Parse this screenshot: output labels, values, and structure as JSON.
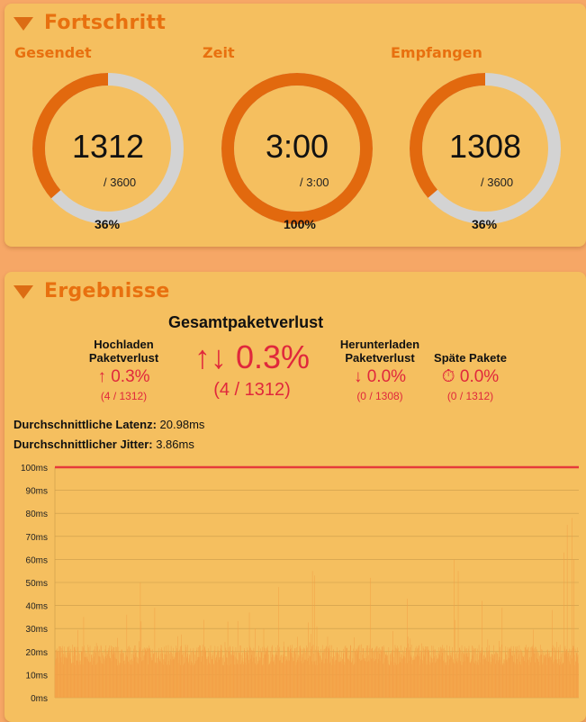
{
  "progress": {
    "title": "Fortschritt",
    "gauges": [
      {
        "label": "Gesendet",
        "value": "1312",
        "total": "/ 3600",
        "percent_text": "36%",
        "fraction": 0.3644
      },
      {
        "label": "Zeit",
        "value": "3:00",
        "total": "/ 3:00",
        "percent_text": "100%",
        "fraction": 1.0
      },
      {
        "label": "Empfangen",
        "value": "1308",
        "total": "/ 3600",
        "percent_text": "36%",
        "fraction": 0.3633
      }
    ]
  },
  "results": {
    "title": "Ergebnisse",
    "total_loss": {
      "heading": "Gesamtpaketverlust",
      "symbol": "↑↓",
      "value": "0.3%",
      "count": "(4 / 1312)"
    },
    "upload_loss": {
      "label_line1": "Hochladen",
      "label_line2": "Paketverlust",
      "symbol": "↑",
      "value": "0.3%",
      "count": "(4 / 1312)"
    },
    "download_loss": {
      "label_line1": "Herunterladen",
      "label_line2": "Paketverlust",
      "symbol": "↓",
      "value": "0.0%",
      "count": "(0 / 1308)"
    },
    "late_packets": {
      "label": "Späte Pakete",
      "symbol": "⏱",
      "value": "0.0%",
      "count": "(0 / 1312)"
    },
    "avg_latency": {
      "label": "Durchschnittliche Latenz:",
      "value": "20.98ms"
    },
    "avg_jitter": {
      "label": "Durchschnittlicher Jitter:",
      "value": "3.86ms"
    }
  },
  "colors": {
    "accent": "#e8700f",
    "gauge_fill": "#e2690e",
    "gauge_track": "#d3d3d3",
    "loss_red": "#e0283c",
    "threshold_line": "#e63a3a",
    "bars": "#f3a047",
    "panel_bg": "#f5bf5f",
    "page_bg": "#f6a766"
  },
  "icons": {
    "collapse": "triangle-down-icon",
    "late": "stopwatch-icon"
  },
  "chart_data": {
    "type": "bar",
    "y_tick_labels": [
      "0ms",
      "10ms",
      "20ms",
      "30ms",
      "40ms",
      "50ms",
      "60ms",
      "70ms",
      "80ms",
      "90ms",
      "100ms"
    ],
    "ylim": [
      0,
      100
    ],
    "unit": "ms",
    "grid": true,
    "threshold": 100,
    "packet_count": 1312,
    "spikes": [
      {
        "packet": 72,
        "latency_ms": 35
      },
      {
        "packet": 180,
        "latency_ms": 36
      },
      {
        "packet": 214,
        "latency_ms": 50
      },
      {
        "packet": 250,
        "latency_ms": 39
      },
      {
        "packet": 433,
        "latency_ms": 33
      },
      {
        "packet": 487,
        "latency_ms": 37
      },
      {
        "packet": 560,
        "latency_ms": 48
      },
      {
        "packet": 645,
        "latency_ms": 55
      },
      {
        "packet": 650,
        "latency_ms": 53
      },
      {
        "packet": 790,
        "latency_ms": 52
      },
      {
        "packet": 882,
        "latency_ms": 43
      },
      {
        "packet": 1000,
        "latency_ms": 60
      },
      {
        "packet": 1010,
        "latency_ms": 55
      },
      {
        "packet": 1070,
        "latency_ms": 42
      },
      {
        "packet": 1120,
        "latency_ms": 39
      },
      {
        "packet": 1245,
        "latency_ms": 38
      },
      {
        "packet": 1275,
        "latency_ms": 63
      },
      {
        "packet": 1283,
        "latency_ms": 75
      },
      {
        "packet": 1295,
        "latency_ms": 78
      },
      {
        "packet": 1300,
        "latency_ms": 60
      }
    ]
  }
}
